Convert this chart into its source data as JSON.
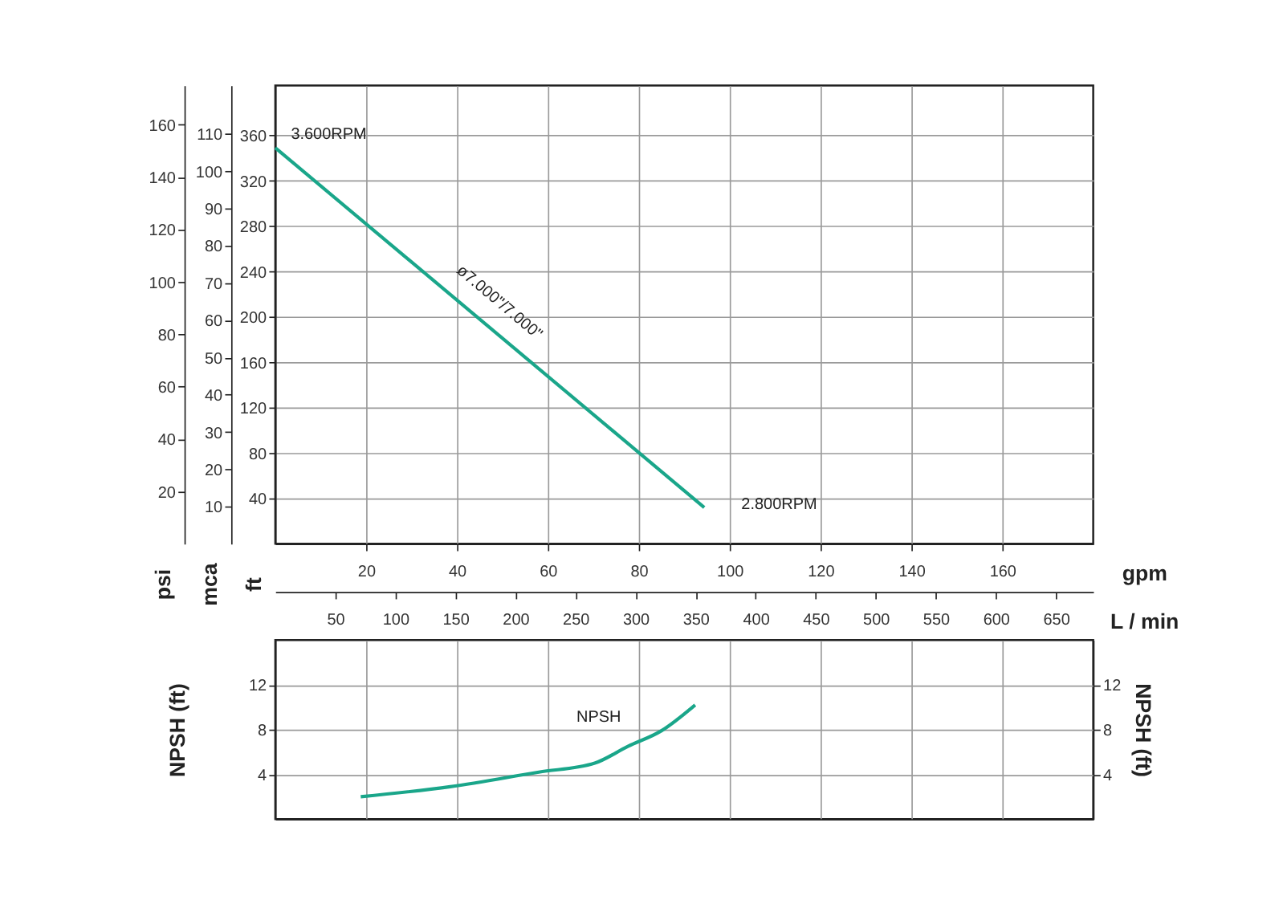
{
  "chart_data": [
    {
      "type": "line",
      "xlabel": "gpm",
      "ylabel": "ft",
      "y2label": "psi",
      "y3label": "mca",
      "x2label": "L / min",
      "xlim": [
        0,
        180
      ],
      "xticks": [
        20,
        40,
        60,
        80,
        100,
        120,
        140,
        160
      ],
      "x2lim": [
        0,
        681
      ],
      "x2ticks": [
        50,
        100,
        150,
        200,
        250,
        300,
        350,
        400,
        450,
        500,
        550,
        600,
        650
      ],
      "ylim": [
        0,
        404
      ],
      "yticks": [
        40,
        80,
        120,
        160,
        200,
        240,
        280,
        320,
        360
      ],
      "y2lim": [
        0,
        175
      ],
      "y2ticks": [
        20,
        40,
        60,
        80,
        100,
        120,
        140,
        160
      ],
      "y3lim": [
        0,
        123
      ],
      "y3ticks": [
        10,
        20,
        30,
        40,
        50,
        60,
        70,
        80,
        90,
        100,
        110
      ],
      "series": [
        {
          "color": "#1aa68a",
          "x": [
            0,
            94.4
          ],
          "values": [
            349,
            32
          ]
        }
      ],
      "annotations": [
        "3.600RPM",
        "ø7.000\"/7.000\"",
        "2.800RPM"
      ],
      "grid": true
    },
    {
      "type": "line",
      "ylabel": "NPSH (ft)",
      "y2label": "NPSH (ft)",
      "tick_labels": "y",
      "xlim": [
        0,
        180
      ],
      "xticks": [
        20,
        40,
        60,
        80,
        100,
        120,
        140,
        160
      ],
      "ylim": [
        0,
        16
      ],
      "yticks": [
        4,
        8,
        12
      ],
      "y2lim": [
        0,
        16
      ],
      "y2ticks": [
        4,
        8,
        12
      ],
      "series": [
        {
          "color": "#1aa68a",
          "x": [
            18.8,
            38.5,
            58,
            70.3,
            77.6,
            85,
            92.4
          ],
          "values": [
            2.0,
            2.9,
            4.2,
            5.0,
            6.5,
            7.9,
            10.2
          ]
        }
      ],
      "annotations": [
        "NPSH"
      ],
      "grid": true
    }
  ]
}
